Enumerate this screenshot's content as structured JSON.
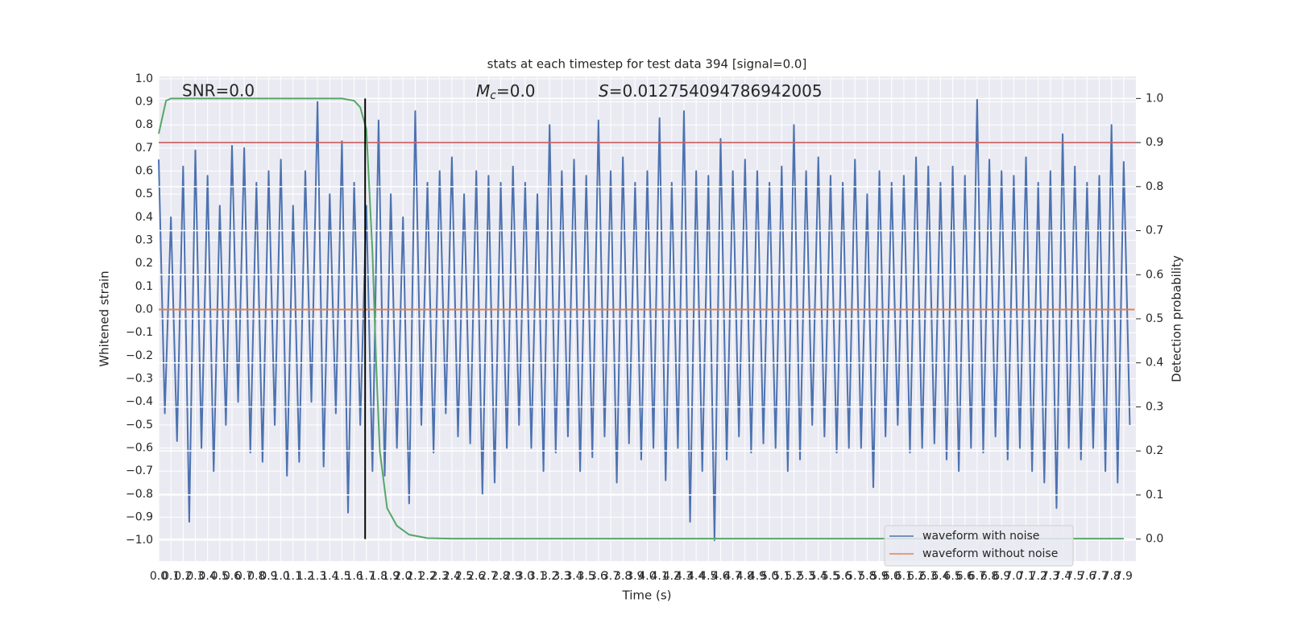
{
  "chart_data": {
    "type": "line",
    "title": "stats at each timestep for test data 394 [signal=0.0]",
    "xlabel": "Time (s)",
    "ylabel": "Whitened strain",
    "y2label": "Detection probability",
    "annotations": [
      {
        "text": "SNR=0.0"
      },
      {
        "symbol": "M",
        "subscript": "c",
        "text": "=0.0"
      },
      {
        "symbol": "S",
        "text": "=0.012754094786942005"
      }
    ],
    "xlim": [
      0,
      8
    ],
    "ylim": [
      -1.09,
      1.01
    ],
    "y2lim": [
      -0.05,
      1.05
    ],
    "grid": true,
    "legend": "lower right",
    "xticks": [
      {
        "value": 0,
        "label": "0.0"
      },
      0.1,
      0.2,
      0.3,
      0.4,
      0.5,
      0.6,
      0.7,
      0.8,
      0.9,
      {
        "value": 1,
        "label": "1.0"
      },
      1.1,
      1.2,
      1.3,
      1.4,
      1.5,
      1.6,
      1.7,
      1.8,
      1.9,
      {
        "value": 2,
        "label": "2.0"
      },
      2.1,
      2.2,
      2.3,
      2.4,
      2.5,
      2.6,
      2.7,
      2.8,
      2.9,
      {
        "value": 3,
        "label": "3.0"
      },
      3.1,
      3.2,
      3.3,
      3.4,
      3.5,
      3.6,
      3.7,
      3.8,
      3.9,
      {
        "value": 4,
        "label": "4.0"
      },
      4.1,
      4.2,
      4.3,
      4.4,
      4.5,
      4.6,
      4.7,
      4.8,
      4.9,
      {
        "value": 5,
        "label": "5.0"
      },
      5.1,
      5.2,
      5.3,
      5.4,
      5.5,
      5.6,
      5.7,
      5.8,
      5.9,
      {
        "value": 6,
        "label": "6.0"
      },
      6.1,
      6.2,
      6.3,
      6.4,
      6.5,
      6.6,
      6.7,
      6.8,
      6.9,
      {
        "value": 7,
        "label": "7.0"
      },
      7.1,
      7.2,
      7.3,
      7.4,
      7.5,
      7.6,
      7.7,
      7.8,
      7.9
    ],
    "yticks": [
      {
        "value": -1,
        "label": "−1.0"
      },
      {
        "value": -0.9,
        "label": "−0.9"
      },
      {
        "value": -0.8,
        "label": "−0.8"
      },
      {
        "value": -0.7,
        "label": "−0.7"
      },
      {
        "value": -0.6,
        "label": "−0.6"
      },
      {
        "value": -0.5,
        "label": "−0.5"
      },
      {
        "value": -0.4,
        "label": "−0.4"
      },
      {
        "value": -0.3,
        "label": "−0.3"
      },
      {
        "value": -0.2,
        "label": "−0.2"
      },
      {
        "value": -0.1,
        "label": "−0.1"
      },
      {
        "value": 0,
        "label": "0.0"
      },
      0.1,
      0.2,
      0.3,
      0.4,
      0.5,
      0.6,
      0.7,
      0.8,
      0.9,
      {
        "value": 1,
        "label": "1.0"
      }
    ],
    "y2ticks": [
      {
        "value": 0,
        "label": "0.0"
      },
      0.1,
      0.2,
      0.3,
      0.4,
      0.5,
      0.6,
      0.7,
      0.8,
      0.9,
      {
        "value": 1,
        "label": "1.0"
      }
    ],
    "threshold": {
      "value": 0.9,
      "axis": "y2",
      "color": "#c44e52"
    },
    "marker_x": 1.69,
    "marker_color": "#000000",
    "series": [
      {
        "name": "waveform with noise",
        "color": "#4c72b0",
        "x": [
          0,
          0.05,
          0.1,
          0.15,
          0.2,
          0.25,
          0.3,
          0.35,
          0.4,
          0.45,
          0.5,
          0.55,
          0.6,
          0.65,
          0.7,
          0.75,
          0.8,
          0.85,
          0.9,
          0.95,
          1,
          1.05,
          1.1,
          1.15,
          1.2,
          1.25,
          1.3,
          1.35,
          1.4,
          1.45,
          1.5,
          1.55,
          1.6,
          1.65,
          1.7,
          1.75,
          1.8,
          1.85,
          1.9,
          1.95,
          2,
          2.05,
          2.1,
          2.15,
          2.2,
          2.25,
          2.3,
          2.35,
          2.4,
          2.45,
          2.5,
          2.55,
          2.6,
          2.65,
          2.7,
          2.75,
          2.8,
          2.85,
          2.9,
          2.95,
          3,
          3.05,
          3.1,
          3.15,
          3.2,
          3.25,
          3.3,
          3.35,
          3.4,
          3.45,
          3.5,
          3.55,
          3.6,
          3.65,
          3.7,
          3.75,
          3.8,
          3.85,
          3.9,
          3.95,
          4,
          4.05,
          4.1,
          4.15,
          4.2,
          4.25,
          4.3,
          4.35,
          4.4,
          4.45,
          4.5,
          4.55,
          4.6,
          4.65,
          4.7,
          4.75,
          4.8,
          4.85,
          4.9,
          4.95,
          5,
          5.05,
          5.1,
          5.15,
          5.2,
          5.25,
          5.3,
          5.35,
          5.4,
          5.45,
          5.5,
          5.55,
          5.6,
          5.65,
          5.7,
          5.75,
          5.8,
          5.85,
          5.9,
          5.95,
          6,
          6.05,
          6.1,
          6.15,
          6.2,
          6.25,
          6.3,
          6.35,
          6.4,
          6.45,
          6.5,
          6.55,
          6.6,
          6.65,
          6.7,
          6.75,
          6.8,
          6.85,
          6.9,
          6.95,
          7,
          7.05,
          7.1,
          7.15,
          7.2,
          7.25,
          7.3,
          7.35,
          7.4,
          7.45,
          7.5,
          7.55,
          7.6,
          7.65,
          7.7,
          7.75,
          7.8,
          7.85,
          7.9,
          7.95
        ],
        "values": [
          0.65,
          -0.45,
          0.4,
          -0.57,
          0.62,
          -0.92,
          0.69,
          -0.6,
          0.58,
          -0.7,
          0.45,
          -0.5,
          0.71,
          -0.4,
          0.7,
          -0.62,
          0.55,
          -0.66,
          0.6,
          -0.5,
          0.65,
          -0.72,
          0.45,
          -0.66,
          0.6,
          -0.4,
          0.9,
          -0.68,
          0.5,
          -0.45,
          0.73,
          -0.88,
          0.55,
          -0.5,
          0.45,
          -0.7,
          0.82,
          -0.72,
          0.5,
          -0.6,
          0.4,
          -0.84,
          0.86,
          -0.5,
          0.55,
          -0.62,
          0.6,
          -0.45,
          0.66,
          -0.55,
          0.5,
          -0.58,
          0.6,
          -0.8,
          0.58,
          -0.75,
          0.55,
          -0.6,
          0.62,
          -0.5,
          0.55,
          -0.6,
          0.5,
          -0.7,
          0.8,
          -0.62,
          0.6,
          -0.55,
          0.65,
          -0.7,
          0.58,
          -0.64,
          0.82,
          -0.55,
          0.6,
          -0.75,
          0.66,
          -0.58,
          0.55,
          -0.65,
          0.6,
          -0.6,
          0.83,
          -0.74,
          0.55,
          -0.6,
          0.86,
          -0.92,
          0.6,
          -0.7,
          0.58,
          -1.0,
          0.74,
          -0.65,
          0.6,
          -0.55,
          0.65,
          -0.62,
          0.6,
          -0.58,
          0.55,
          -0.6,
          0.62,
          -0.7,
          0.8,
          -0.65,
          0.6,
          -0.5,
          0.66,
          -0.55,
          0.58,
          -0.62,
          0.55,
          -0.6,
          0.65,
          -0.6,
          0.5,
          -0.77,
          0.6,
          -0.55,
          0.55,
          -0.5,
          0.58,
          -0.62,
          0.66,
          -0.6,
          0.62,
          -0.58,
          0.55,
          -0.65,
          0.62,
          -0.7,
          0.58,
          -0.6,
          0.91,
          -0.62,
          0.65,
          -0.55,
          0.6,
          -0.65,
          0.58,
          -0.6,
          0.66,
          -0.7,
          0.55,
          -0.75,
          0.6,
          -0.86,
          0.76,
          -0.6,
          0.62,
          -0.65,
          0.55,
          -0.6,
          0.58,
          -0.7,
          0.8,
          -0.75,
          0.64,
          -0.5
        ]
      },
      {
        "name": "waveform without noise",
        "color": "#dd8452",
        "x": [
          0,
          7.99
        ],
        "values": [
          0,
          0
        ]
      },
      {
        "color": "#55a868",
        "axis": "y2",
        "x": [
          0,
          0.06,
          0.1,
          0.2,
          0.4,
          0.8,
          1.2,
          1.5,
          1.6,
          1.65,
          1.7,
          1.75,
          1.78,
          1.81,
          1.87,
          1.95,
          2.05,
          2.2,
          2.4,
          3,
          4,
          5,
          6,
          7,
          7.9
        ],
        "values": [
          0.92,
          0.995,
          1.0,
          1.0,
          1.0,
          1.0,
          1.0,
          1.0,
          0.995,
          0.98,
          0.93,
          0.65,
          0.4,
          0.2,
          0.07,
          0.03,
          0.01,
          0.002,
          0.001,
          0.001,
          0.001,
          0.001,
          0.001,
          0.001,
          0.001
        ]
      }
    ]
  }
}
